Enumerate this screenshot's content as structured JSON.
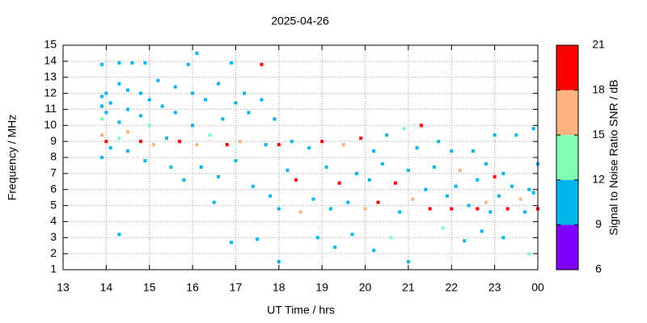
{
  "chart_data": {
    "type": "scatter",
    "title": "2025-04-26",
    "xlabel": "UT Time / hrs",
    "ylabel": "Frequency / MHz",
    "xlim": [
      13,
      24
    ],
    "xticks": [
      13,
      14,
      15,
      16,
      17,
      18,
      19,
      20,
      21,
      22,
      23,
      {
        "value": 24,
        "label": "00"
      }
    ],
    "ylim": [
      1,
      15
    ],
    "yticks": [
      1,
      2,
      3,
      4,
      5,
      6,
      7,
      8,
      9,
      10,
      11,
      12,
      13,
      14,
      15
    ],
    "grid": true,
    "colorbar": {
      "label": "Signal to Noise Ratio SNR / dB",
      "lim": [
        6,
        21
      ],
      "ticks": [
        6,
        9,
        12,
        15,
        18,
        21
      ],
      "colors": [
        "#8000ff",
        "#00b4ec",
        "#80ffb4",
        "#ffb480",
        "#ff0000"
      ]
    },
    "x": [
      13.9,
      13.9,
      13.9,
      13.9,
      13.9,
      13.9,
      14.0,
      14.0,
      14.0,
      14.1,
      14.1,
      14.3,
      14.3,
      14.3,
      14.3,
      14.3,
      14.5,
      14.5,
      14.5,
      14.5,
      14.6,
      14.8,
      14.8,
      14.8,
      14.9,
      14.9,
      15.0,
      15.0,
      15.1,
      15.2,
      15.3,
      15.4,
      15.5,
      15.6,
      15.6,
      15.7,
      15.8,
      15.9,
      16.0,
      16.0,
      16.1,
      16.1,
      16.2,
      16.3,
      16.4,
      16.5,
      16.6,
      16.6,
      16.7,
      16.8,
      16.9,
      16.9,
      17.0,
      17.0,
      17.1,
      17.2,
      17.3,
      17.4,
      17.5,
      17.6,
      17.6,
      17.7,
      17.8,
      17.9,
      18.0,
      18.0,
      18.0,
      18.2,
      18.3,
      18.4,
      18.5,
      18.7,
      18.8,
      18.9,
      19.0,
      19.1,
      19.2,
      19.3,
      19.4,
      19.5,
      19.6,
      19.7,
      19.8,
      19.9,
      20.0,
      20.1,
      20.2,
      20.2,
      20.3,
      20.4,
      20.5,
      20.6,
      20.7,
      20.8,
      20.9,
      21.0,
      21.0,
      21.1,
      21.2,
      21.3,
      21.4,
      21.5,
      21.6,
      21.7,
      21.8,
      21.9,
      22.0,
      22.0,
      22.1,
      22.2,
      22.3,
      22.4,
      22.5,
      22.6,
      22.6,
      22.7,
      22.8,
      22.8,
      22.9,
      23.0,
      23.0,
      23.1,
      23.2,
      23.2,
      23.3,
      23.4,
      23.5,
      23.6,
      23.7,
      23.8,
      23.8,
      23.9,
      24.0,
      24.0,
      23.9
    ],
    "values": [
      11.8,
      11.2,
      10.4,
      9.4,
      8.0,
      13.8,
      12.0,
      10.8,
      9.0,
      8.6,
      11.4,
      12.6,
      10.2,
      9.2,
      3.2,
      13.9,
      12.2,
      11.0,
      9.6,
      8.4,
      13.9,
      12.0,
      10.6,
      9.0,
      7.8,
      13.9,
      11.6,
      10.0,
      8.8,
      12.8,
      11.2,
      9.2,
      7.4,
      12.4,
      10.8,
      9.0,
      6.6,
      13.8,
      12.0,
      10.0,
      8.8,
      14.5,
      7.4,
      11.6,
      9.4,
      5.2,
      12.6,
      6.8,
      10.4,
      8.8,
      2.7,
      13.9,
      11.4,
      7.8,
      9.0,
      12.0,
      10.8,
      6.2,
      2.9,
      11.6,
      13.8,
      8.8,
      5.6,
      10.4,
      8.8,
      4.8,
      1.5,
      7.2,
      9.0,
      6.6,
      4.6,
      8.6,
      5.4,
      3.0,
      9.0,
      7.4,
      4.8,
      2.4,
      6.4,
      8.8,
      5.2,
      3.2,
      7.0,
      9.2,
      4.8,
      6.6,
      8.4,
      2.2,
      5.2,
      7.6,
      9.4,
      3.0,
      6.4,
      4.6,
      9.8,
      7.2,
      1.5,
      5.4,
      8.6,
      10.0,
      6.0,
      4.8,
      7.4,
      9.0,
      3.6,
      5.6,
      8.4,
      4.8,
      6.2,
      7.2,
      2.8,
      5.0,
      8.4,
      4.8,
      6.6,
      3.4,
      7.6,
      5.2,
      4.6,
      6.8,
      9.4,
      5.6,
      7.0,
      3.0,
      4.8,
      6.2,
      9.4,
      5.4,
      4.6,
      2.0,
      6.0,
      9.8,
      4.8,
      7.6,
      5.8
    ],
    "snr": [
      10,
      10,
      14,
      17,
      10,
      10,
      10,
      10,
      19,
      10,
      10,
      10,
      10,
      13,
      10,
      10,
      10,
      10,
      16,
      10,
      10,
      10,
      10,
      19,
      10,
      10,
      10,
      13,
      16,
      10,
      10,
      10,
      10,
      10,
      10,
      19,
      10,
      10,
      10,
      10,
      16,
      10,
      10,
      10,
      13,
      10,
      10,
      10,
      10,
      19,
      10,
      10,
      10,
      10,
      16,
      10,
      10,
      10,
      10,
      10,
      19,
      10,
      10,
      10,
      19,
      10,
      10,
      10,
      10,
      19,
      16,
      10,
      10,
      10,
      19,
      10,
      10,
      10,
      19,
      16,
      10,
      10,
      10,
      19,
      16,
      10,
      10,
      10,
      19,
      10,
      10,
      13,
      19,
      10,
      13,
      10,
      10,
      16,
      10,
      19,
      10,
      19,
      10,
      10,
      13,
      10,
      10,
      19,
      10,
      16,
      10,
      10,
      10,
      19,
      10,
      10,
      10,
      16,
      10,
      19,
      10,
      10,
      10,
      10,
      19,
      10,
      10,
      16,
      10,
      13,
      10,
      10,
      19,
      10,
      10
    ]
  }
}
